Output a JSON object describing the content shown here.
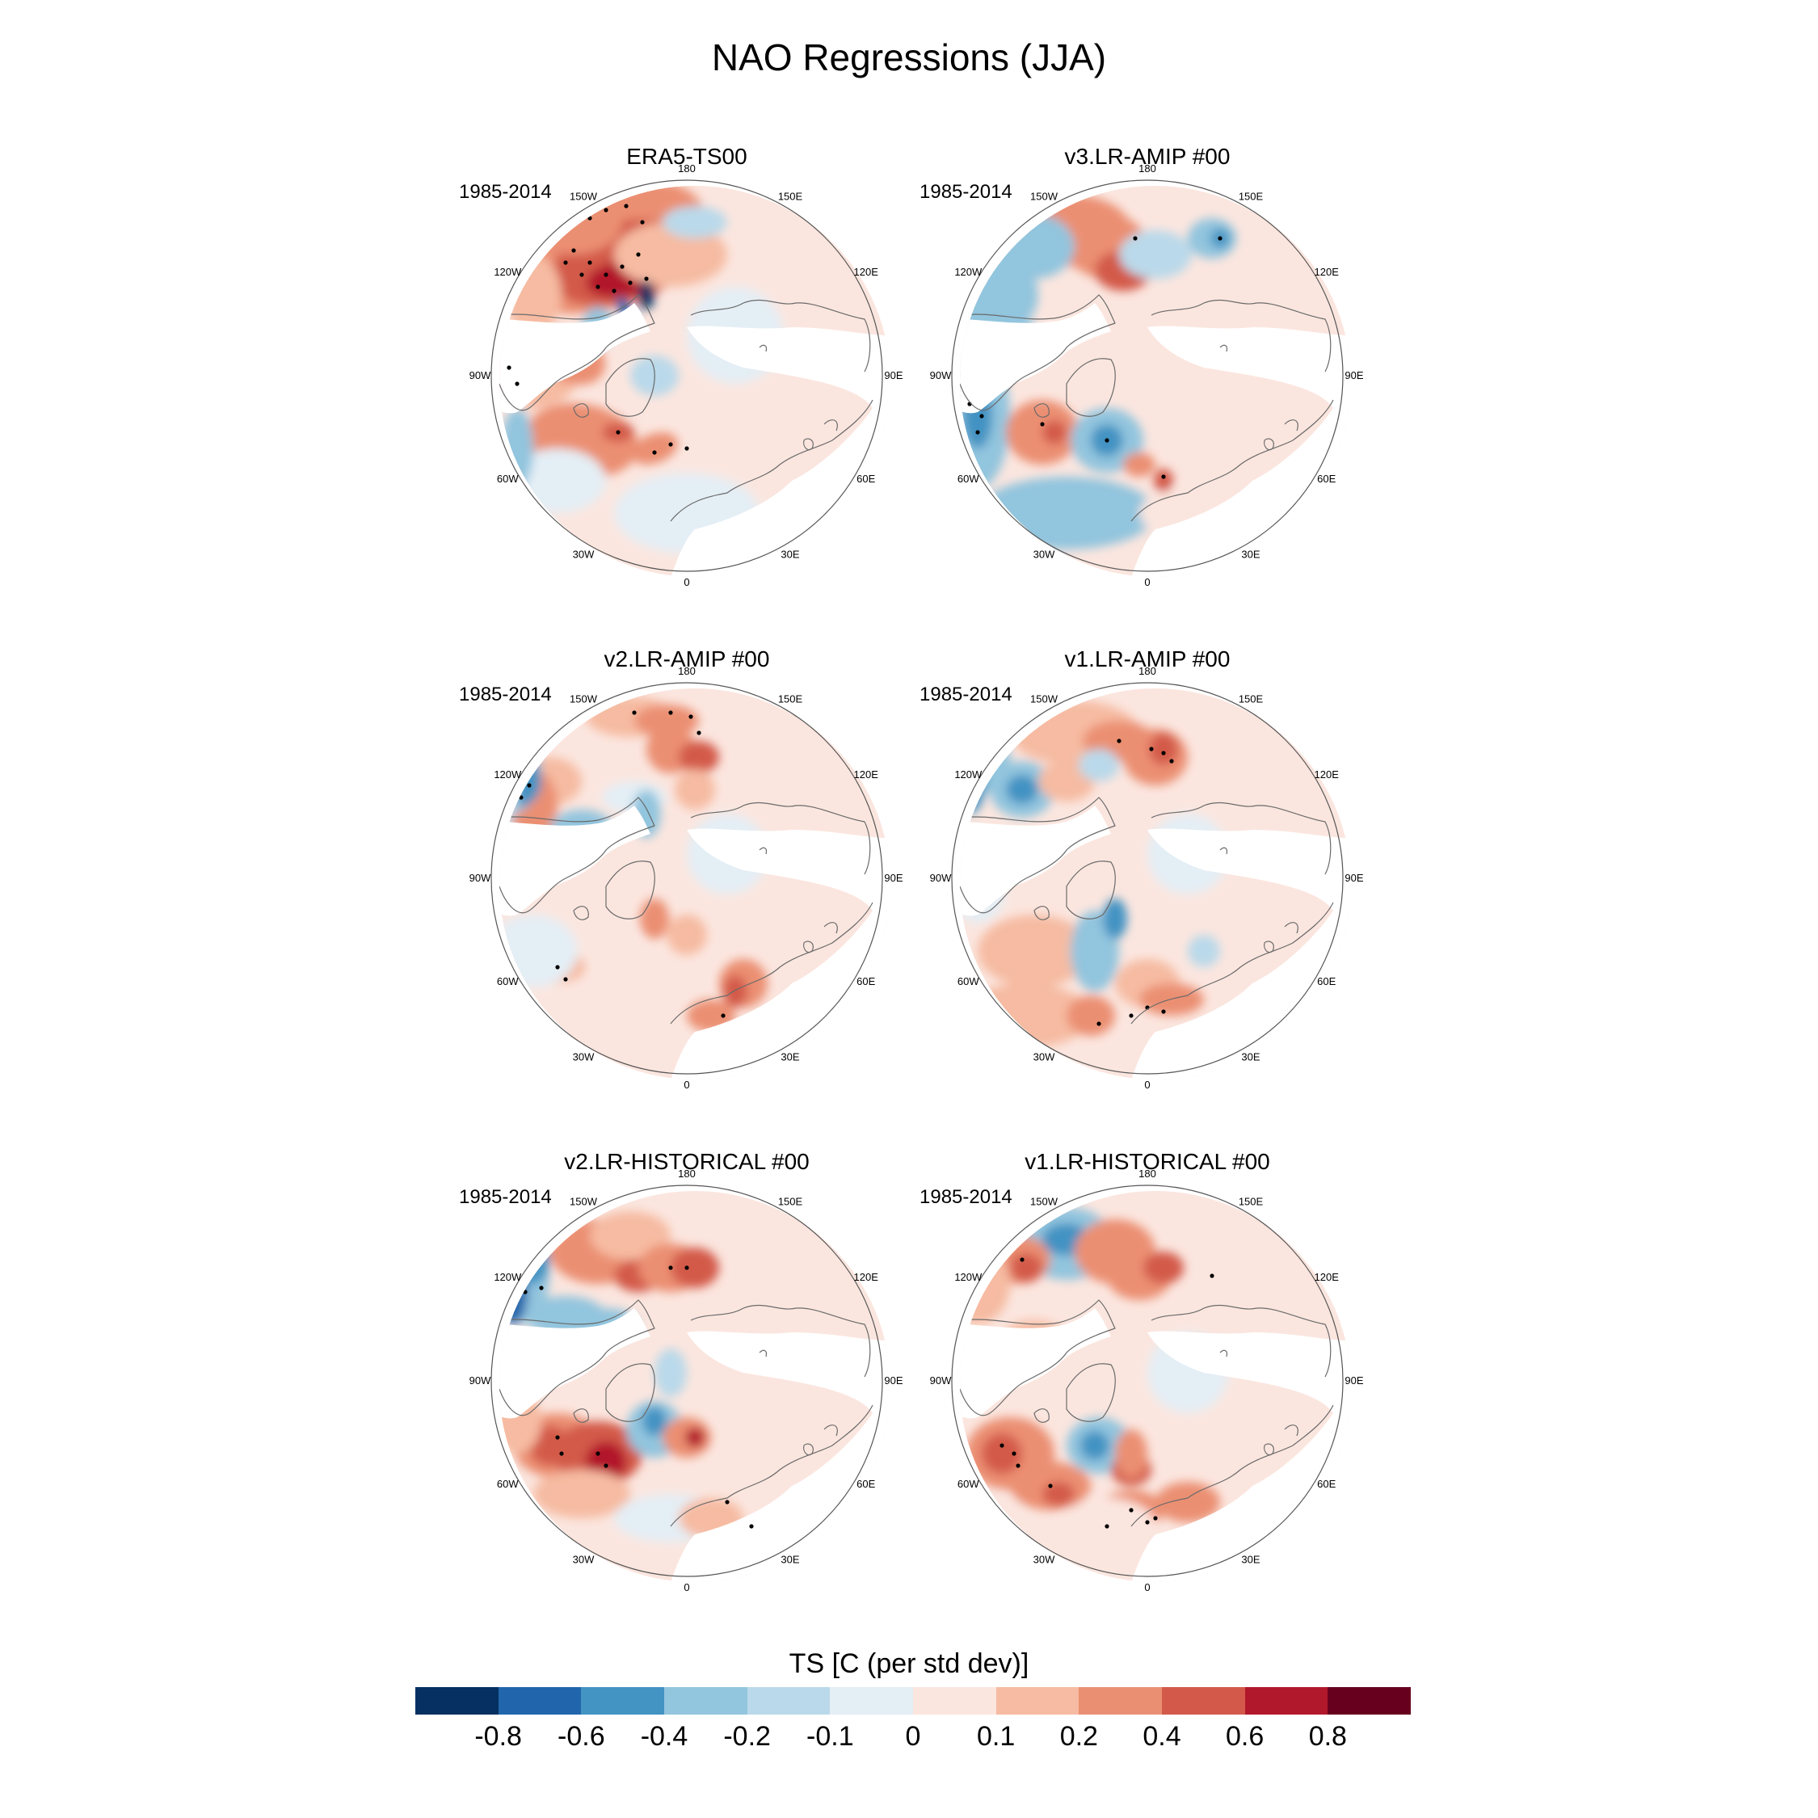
{
  "title": "NAO Regressions (JJA)",
  "panels": [
    {
      "title": "ERA5-TS00",
      "period": "1985-2014",
      "theme": "era5"
    },
    {
      "title": "v3.LR-AMIP  #00",
      "period": "1985-2014",
      "theme": "v3amip"
    },
    {
      "title": "v2.LR-AMIP  #00",
      "period": "1985-2014",
      "theme": "v2amip"
    },
    {
      "title": "v1.LR-AMIP  #00",
      "period": "1985-2014",
      "theme": "v1amip"
    },
    {
      "title": "v2.LR-HISTORICAL  #00",
      "period": "1985-2014",
      "theme": "v2hist"
    },
    {
      "title": "v1.LR-HISTORICAL  #00",
      "period": "1985-2014",
      "theme": "v1hist"
    }
  ],
  "longitude_labels": [
    "180",
    "150E",
    "120E",
    "90E",
    "60E",
    "30E",
    "0",
    "30W",
    "60W",
    "90W",
    "120W",
    "150W"
  ],
  "colorbar": {
    "title": "TS [C (per std dev)]",
    "ticks": [
      "-0.8",
      "-0.6",
      "-0.4",
      "-0.2",
      "-0.1",
      "0",
      "0.1",
      "0.2",
      "0.4",
      "0.6",
      "0.8"
    ],
    "colors": [
      "#053061",
      "#2166ac",
      "#4393c3",
      "#92c5de",
      "#bad9ea",
      "#e4eef5",
      "#fbe6df",
      "#f6bba2",
      "#eb8f72",
      "#d35a4a",
      "#b2182b",
      "#67001f"
    ]
  }
}
